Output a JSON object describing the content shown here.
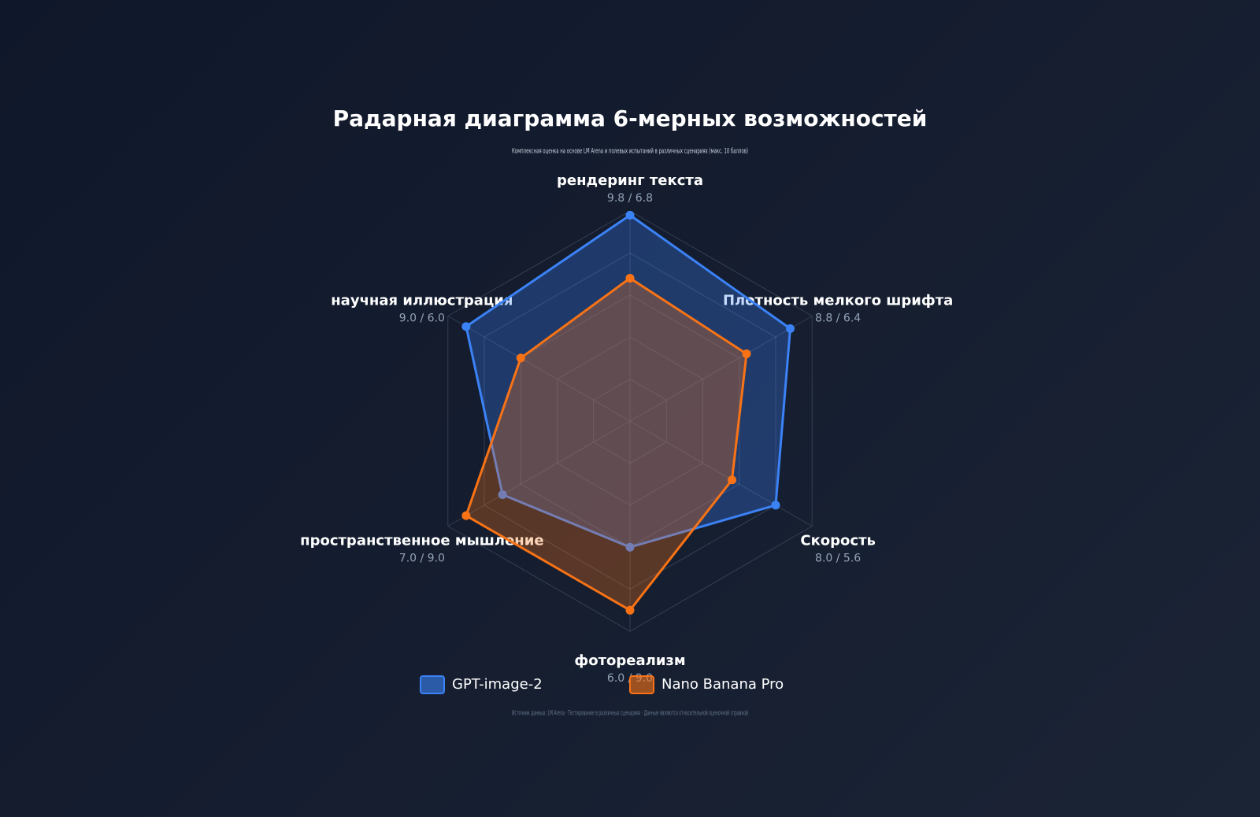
{
  "chart_data": {
    "type": "radar",
    "title": "Радарная диаграмма 6-мерных возможностей",
    "subtitle": "Комплексная оценка на основе LM Arena и полевых испытаний в различных сценариях (макс. 10 баллов)",
    "footnote": "Источник данных: LM Arena · Тестирование в различных сценариях · Данные являются относительной оценочной справкой",
    "categories": [
      "рендеринг текста",
      "Плотность мелкого шрифта",
      "Скорость",
      "фотореализм",
      "пространственное мышление",
      "научная иллюстрация"
    ],
    "category_value_labels": [
      "9.8 / 6.8",
      "8.8 / 6.4",
      "8.0 / 5.6",
      "6.0 / 9.0",
      "7.0 / 9.0",
      "9.0 / 6.0"
    ],
    "series": [
      {
        "name": "GPT-image-2",
        "color": "#3b82f6",
        "values": [
          9.8,
          8.8,
          8.0,
          6.0,
          7.0,
          9.0
        ]
      },
      {
        "name": "Nano Banana Pro",
        "color": "#f97316",
        "values": [
          6.8,
          6.4,
          5.6,
          9.0,
          9.0,
          6.0
        ]
      }
    ],
    "rlim": [
      0,
      10
    ],
    "rticks": [
      2,
      4,
      6,
      8,
      10
    ],
    "grid": true,
    "legend": "bottom"
  }
}
